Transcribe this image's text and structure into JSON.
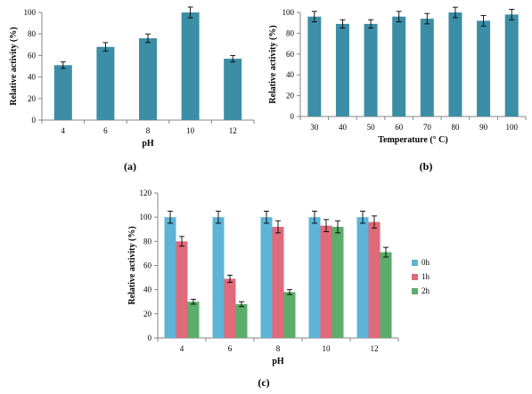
{
  "chart_data": [
    {
      "id": "a",
      "panel_label": "(a)",
      "type": "bar",
      "categories": [
        "4",
        "6",
        "8",
        "10",
        "12"
      ],
      "series": [
        {
          "values": [
            51,
            68,
            76,
            100,
            57
          ],
          "errors": [
            3,
            4,
            4,
            5,
            3
          ],
          "color": "#3b8ea5"
        }
      ],
      "xlabel": "pH",
      "ylabel": "Relative activity (%)",
      "ylim": [
        0,
        100
      ],
      "yticks": [
        0,
        20,
        40,
        60,
        80,
        100
      ],
      "grid": false
    },
    {
      "id": "b",
      "panel_label": "(b)",
      "type": "bar",
      "categories": [
        "30",
        "40",
        "50",
        "60",
        "70",
        "80",
        "90",
        "100"
      ],
      "series": [
        {
          "values": [
            96,
            89,
            89,
            96,
            94,
            100,
            92,
            98
          ],
          "errors": [
            5,
            4,
            4,
            5,
            5,
            5,
            5,
            5
          ],
          "color": "#3b8ea5"
        }
      ],
      "xlabel": "Temperature (° C)",
      "ylabel": "Relative activity (%)",
      "ylim": [
        0,
        100
      ],
      "yticks": [
        0,
        20,
        40,
        60,
        80,
        100
      ],
      "grid": false
    },
    {
      "id": "c",
      "panel_label": "(c)",
      "type": "bar",
      "categories": [
        "4",
        "6",
        "8",
        "10",
        "12"
      ],
      "series": [
        {
          "name": "0h",
          "values": [
            100,
            100,
            100,
            100,
            100
          ],
          "errors": [
            5,
            5,
            5,
            5,
            5
          ],
          "color": "#5db4d6"
        },
        {
          "name": "1h",
          "values": [
            80,
            49,
            92,
            93,
            96
          ],
          "errors": [
            4,
            3,
            5,
            5,
            5
          ],
          "color": "#e0697a"
        },
        {
          "name": "2h",
          "values": [
            30,
            28,
            38,
            92,
            71
          ],
          "errors": [
            2,
            2,
            2,
            5,
            4
          ],
          "color": "#5aad6b"
        }
      ],
      "xlabel": "pH",
      "ylabel": "Relative activity (%)",
      "ylim": [
        0,
        120
      ],
      "yticks": [
        0,
        20,
        40,
        60,
        80,
        100,
        120
      ],
      "legend_position": "right",
      "grid": false
    }
  ]
}
